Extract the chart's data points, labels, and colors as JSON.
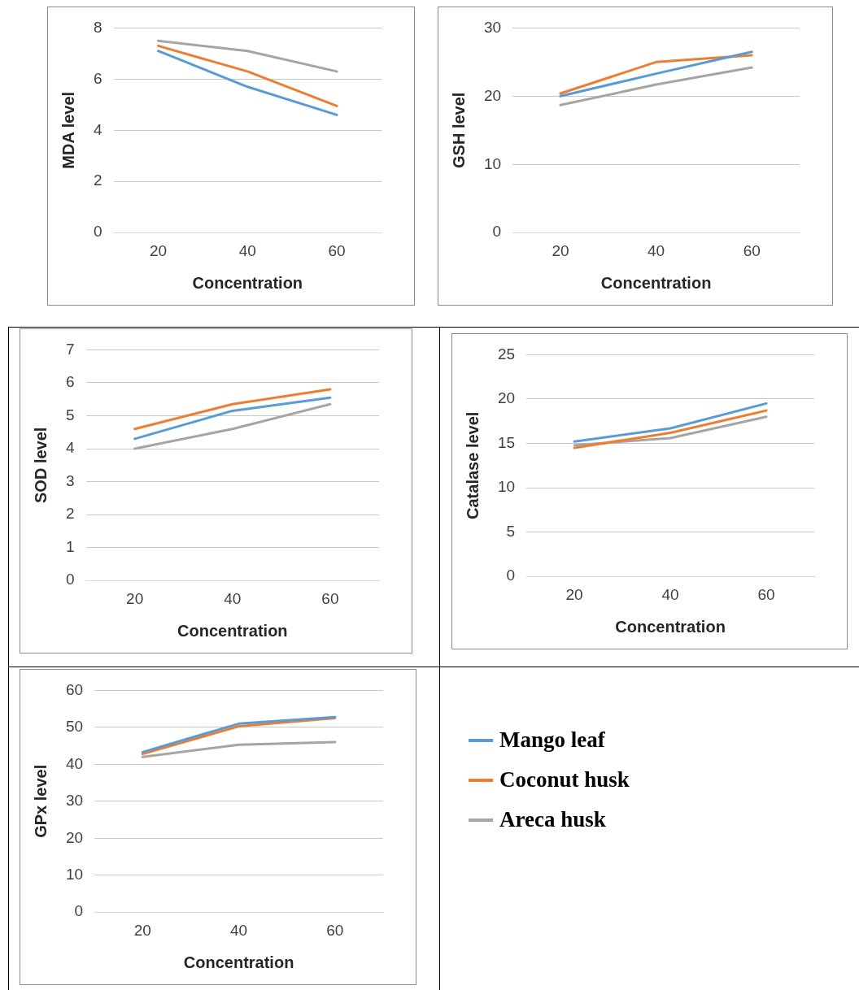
{
  "chart_data": [
    {
      "type": "line",
      "xlabel": "Concentration",
      "ylabel": "MDA level",
      "categories": [
        "20",
        "40",
        "60"
      ],
      "ylim": [
        0,
        8
      ],
      "yticks": [
        0,
        2,
        4,
        6,
        8
      ],
      "grid": "y",
      "marker": "none",
      "series": [
        {
          "color": "#5b9bd5",
          "values": [
            7.1,
            5.7,
            4.6
          ]
        },
        {
          "color": "#ed7d31",
          "values": [
            7.3,
            6.3,
            4.95
          ]
        },
        {
          "color": "#a5a5a5",
          "values": [
            7.5,
            7.1,
            6.3
          ]
        }
      ]
    },
    {
      "type": "line",
      "xlabel": "Concentration",
      "ylabel": "GSH level",
      "categories": [
        "20",
        "40",
        "60"
      ],
      "ylim": [
        0,
        30
      ],
      "yticks": [
        0,
        10,
        20,
        30
      ],
      "grid": "y",
      "marker": "none",
      "series": [
        {
          "color": "#5b9bd5",
          "values": [
            20,
            23.3,
            26.5
          ]
        },
        {
          "color": "#ed7d31",
          "values": [
            20.4,
            25,
            26
          ]
        },
        {
          "color": "#a5a5a5",
          "values": [
            18.7,
            21.7,
            24.2
          ]
        }
      ]
    },
    {
      "type": "line",
      "xlabel": "Concentration",
      "ylabel": "SOD level",
      "categories": [
        "20",
        "40",
        "60"
      ],
      "ylim": [
        0,
        7
      ],
      "yticks": [
        0,
        1,
        2,
        3,
        4,
        5,
        6,
        7
      ],
      "grid": "y",
      "marker": "none",
      "series": [
        {
          "color": "#5b9bd5",
          "values": [
            4.3,
            5.15,
            5.55
          ]
        },
        {
          "color": "#ed7d31",
          "values": [
            4.6,
            5.35,
            5.8
          ]
        },
        {
          "color": "#a5a5a5",
          "values": [
            4.0,
            4.6,
            5.35
          ]
        }
      ]
    },
    {
      "type": "line",
      "xlabel": "Concentration",
      "ylabel": "Catalase level",
      "categories": [
        "20",
        "40",
        "60"
      ],
      "ylim": [
        0,
        25
      ],
      "yticks": [
        0,
        5,
        10,
        15,
        20,
        25
      ],
      "grid": "y",
      "marker": "none",
      "series": [
        {
          "color": "#5b9bd5",
          "values": [
            15.2,
            16.7,
            19.5
          ]
        },
        {
          "color": "#ed7d31",
          "values": [
            14.5,
            16.2,
            18.7
          ]
        },
        {
          "color": "#a5a5a5",
          "values": [
            14.8,
            15.6,
            18
          ]
        }
      ]
    },
    {
      "type": "line",
      "xlabel": "Concentration",
      "ylabel": "GPx level",
      "categories": [
        "20",
        "40",
        "60"
      ],
      "ylim": [
        0,
        60
      ],
      "yticks": [
        0,
        10,
        20,
        30,
        40,
        50,
        60
      ],
      "grid": "y",
      "marker": "none",
      "legend": "right",
      "series": [
        {
          "name": "Mango leaf",
          "color": "#5b9bd5",
          "values": [
            43.3,
            51,
            52.8
          ]
        },
        {
          "name": "Coconut husk",
          "color": "#ed7d31",
          "values": [
            42.8,
            50.3,
            52.5
          ]
        },
        {
          "name": "Areca husk",
          "color": "#a5a5a5",
          "values": [
            42,
            45.3,
            46
          ]
        }
      ]
    }
  ]
}
